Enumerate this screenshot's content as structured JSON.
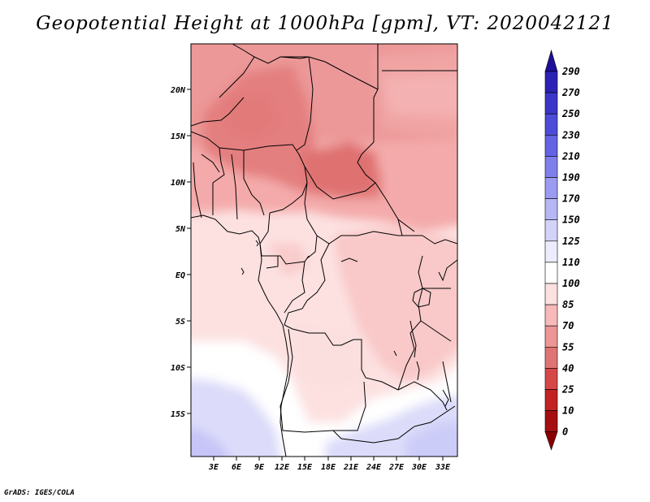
{
  "title": "Geopotential Height at 1000hPa [gpm], VT: 2020042121",
  "credit": "GrADS: IGES/COLA",
  "map": {
    "region": "Central Africa",
    "lon_range": [
      0,
      35
    ],
    "lat_range": [
      -20,
      25
    ],
    "lat_ticks": [
      "20N",
      "15N",
      "10N",
      "5N",
      "EQ",
      "5S",
      "10S",
      "15S"
    ],
    "lon_ticks": [
      "3E",
      "6E",
      "9E",
      "12E",
      "15E",
      "18E",
      "21E",
      "24E",
      "27E",
      "30E",
      "33E"
    ]
  },
  "colorbar": {
    "levels": [
      "290",
      "270",
      "250",
      "230",
      "210",
      "190",
      "170",
      "150",
      "125",
      "110",
      "100",
      "85",
      "70",
      "55",
      "40",
      "25",
      "10",
      "0"
    ],
    "colors": [
      "#1e0e9a",
      "#2b22b5",
      "#3a36c9",
      "#4c4cd8",
      "#6363e4",
      "#7f7fec",
      "#9b9bf2",
      "#b6b6f6",
      "#d3d3f9",
      "#ececfc",
      "#ffffff",
      "#fde0e0",
      "#f8b9b9",
      "#ec9696",
      "#e07474",
      "#d64848",
      "#c22222",
      "#a50f0f",
      "#8a0000"
    ]
  }
}
